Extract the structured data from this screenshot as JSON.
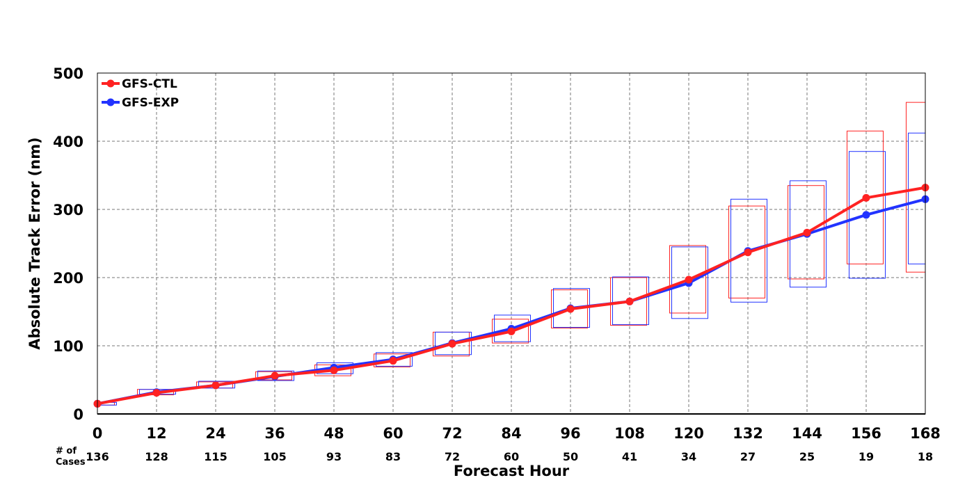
{
  "chart_data": {
    "type": "line",
    "title": "",
    "xlabel": "Forecast Hour",
    "ylabel": "Absolute Track Error (nm)",
    "xlim": [
      0,
      168
    ],
    "ylim": [
      0,
      500
    ],
    "x": [
      0,
      12,
      24,
      36,
      48,
      60,
      72,
      84,
      96,
      108,
      120,
      132,
      144,
      156,
      168
    ],
    "x_ticks": [
      "0",
      "12",
      "24",
      "36",
      "48",
      "60",
      "72",
      "84",
      "96",
      "108",
      "120",
      "132",
      "144",
      "156",
      "168"
    ],
    "y_ticks": [
      "0",
      "100",
      "200",
      "300",
      "400",
      "500"
    ],
    "grid": true,
    "legend_position": "top-left",
    "series": [
      {
        "name": "GFS-CTL",
        "color": "#ff2222",
        "values": [
          15,
          31,
          42,
          56,
          64,
          78,
          103,
          121,
          154,
          165,
          197,
          237,
          266,
          317,
          332
        ],
        "box_low": [
          13,
          28,
          38,
          50,
          56,
          69,
          85,
          104,
          126,
          130,
          148,
          170,
          198,
          220,
          208
        ],
        "box_high": [
          17,
          36,
          47,
          62,
          72,
          88,
          120,
          139,
          182,
          200,
          247,
          305,
          335,
          415,
          457
        ]
      },
      {
        "name": "GFS-EXP",
        "color": "#2233ff",
        "values": [
          15,
          32,
          42,
          55,
          68,
          80,
          104,
          125,
          155,
          165,
          192,
          239,
          264,
          292,
          315
        ],
        "box_low": [
          13,
          29,
          38,
          49,
          59,
          70,
          87,
          106,
          127,
          131,
          140,
          164,
          186,
          199,
          220
        ],
        "box_high": [
          17,
          36,
          48,
          63,
          75,
          90,
          120,
          145,
          184,
          201,
          245,
          315,
          342,
          385,
          412
        ]
      }
    ],
    "cases": {
      "label_line1": "# of",
      "label_line2": "Cases",
      "values": [
        "136",
        "128",
        "115",
        "105",
        "93",
        "83",
        "72",
        "60",
        "50",
        "41",
        "34",
        "27",
        "25",
        "19",
        "18"
      ]
    }
  }
}
